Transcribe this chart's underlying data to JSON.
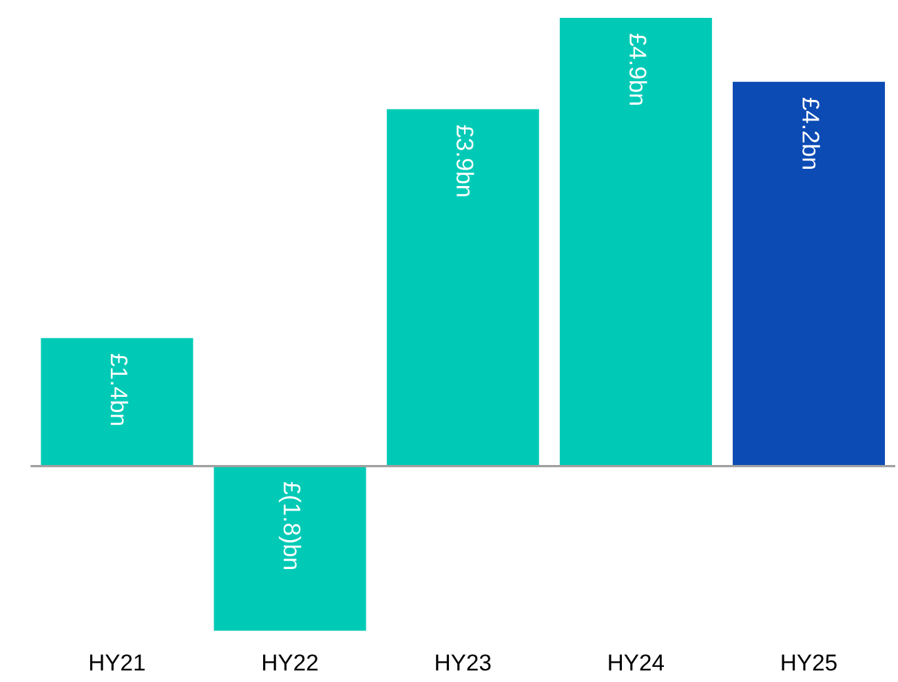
{
  "chart_data": {
    "type": "bar",
    "categories": [
      "HY21",
      "HY22",
      "HY23",
      "HY24",
      "HY25"
    ],
    "values": [
      1.4,
      -1.8,
      3.9,
      4.9,
      4.2
    ],
    "colors": [
      "#00cab6",
      "#00cab6",
      "#00cab6",
      "#00cab6",
      "#0c4bb4"
    ],
    "value_labels": [
      "£1.4bn",
      "£(1.8)bn",
      "£3.9bn",
      "£4.9bn",
      "£4.2bn"
    ],
    "grid": false,
    "legend": false
  }
}
